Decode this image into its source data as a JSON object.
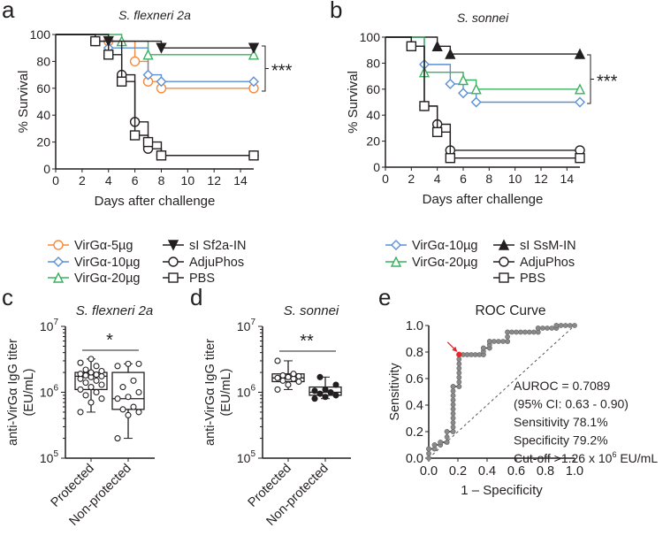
{
  "colors": {
    "orange": "#f58b3c",
    "blue": "#5b8fd6",
    "green": "#3bb060",
    "black": "#231f20",
    "red": "#e8262b",
    "gray": "#888888"
  },
  "chart_data": [
    {
      "panel": "a",
      "type": "line",
      "title": "S. flexneri 2a",
      "xlabel": "Days after challenge",
      "ylabel": "% Survival",
      "xlim": [
        0,
        15
      ],
      "ylim": [
        0,
        100
      ],
      "xticks": [
        "0",
        "2",
        "4",
        "6",
        "8",
        "10",
        "12",
        "14"
      ],
      "yticks": [
        "0",
        "20",
        "40",
        "60",
        "80",
        "100"
      ],
      "significance": "***",
      "series": [
        {
          "name": "VirGα-5µg",
          "color": "orange",
          "marker": "circle-open",
          "points": [
            [
              0,
              100
            ],
            [
              4,
              95
            ],
            [
              6,
              80
            ],
            [
              7,
              65
            ],
            [
              8,
              60
            ],
            [
              15,
              60
            ]
          ]
        },
        {
          "name": "VirGα-10µg",
          "color": "blue",
          "marker": "diamond-open",
          "points": [
            [
              0,
              100
            ],
            [
              4,
              90
            ],
            [
              7,
              70
            ],
            [
              8,
              65
            ],
            [
              15,
              65
            ]
          ]
        },
        {
          "name": "VirGα-20µg",
          "color": "green",
          "marker": "triangle-open",
          "points": [
            [
              0,
              100
            ],
            [
              5,
              95
            ],
            [
              7,
              85
            ],
            [
              15,
              85
            ]
          ]
        },
        {
          "name": "sI Sf2a-IN",
          "color": "black",
          "marker": "triangle-down-filled",
          "points": [
            [
              0,
              100
            ],
            [
              4,
              95
            ],
            [
              8,
              90
            ],
            [
              15,
              90
            ]
          ]
        },
        {
          "name": "AdjuPhos",
          "color": "black",
          "marker": "circle-open",
          "points": [
            [
              0,
              100
            ],
            [
              3,
              95
            ],
            [
              5,
              70
            ],
            [
              6,
              35
            ],
            [
              7,
              15
            ],
            [
              8,
              10
            ],
            [
              15,
              10
            ]
          ]
        },
        {
          "name": "PBS",
          "color": "black",
          "marker": "square-open",
          "points": [
            [
              0,
              100
            ],
            [
              3,
              95
            ],
            [
              4,
              85
            ],
            [
              5,
              65
            ],
            [
              6,
              25
            ],
            [
              7,
              20
            ],
            [
              8,
              10
            ],
            [
              15,
              10
            ]
          ]
        }
      ]
    },
    {
      "panel": "b",
      "type": "line",
      "title": "S. sonnei",
      "xlabel": "Days after challenge",
      "ylabel": "% Survival",
      "xlim": [
        0,
        15
      ],
      "ylim": [
        0,
        100
      ],
      "xticks": [
        "0",
        "2",
        "4",
        "6",
        "8",
        "10",
        "12",
        "14"
      ],
      "yticks": [
        "0",
        "20",
        "40",
        "60",
        "80",
        "100"
      ],
      "significance": "***",
      "series": [
        {
          "name": "VirGα-10µg",
          "color": "blue",
          "marker": "diamond-open",
          "points": [
            [
              0,
              100
            ],
            [
              3,
              79
            ],
            [
              5,
              64
            ],
            [
              6,
              57
            ],
            [
              7,
              50
            ],
            [
              15,
              50
            ]
          ]
        },
        {
          "name": "sI SsM-IN",
          "color": "black",
          "marker": "triangle-filled",
          "points": [
            [
              0,
              100
            ],
            [
              4,
              93
            ],
            [
              5,
              87
            ],
            [
              15,
              87
            ]
          ]
        },
        {
          "name": "VirGα-20µg",
          "color": "green",
          "marker": "triangle-open",
          "points": [
            [
              0,
              100
            ],
            [
              3,
              73
            ],
            [
              6,
              67
            ],
            [
              7,
              60
            ],
            [
              15,
              60
            ]
          ]
        },
        {
          "name": "AdjuPhos",
          "color": "black",
          "marker": "circle-open",
          "points": [
            [
              0,
              100
            ],
            [
              2,
              93
            ],
            [
              3,
              47
            ],
            [
              4,
              33
            ],
            [
              5,
              13
            ],
            [
              15,
              13
            ]
          ]
        },
        {
          "name": "PBS",
          "color": "black",
          "marker": "square-open",
          "points": [
            [
              0,
              100
            ],
            [
              2,
              93
            ],
            [
              3,
              47
            ],
            [
              4,
              27
            ],
            [
              5,
              7
            ],
            [
              15,
              7
            ]
          ]
        }
      ]
    },
    {
      "panel": "c",
      "type": "box",
      "title": "S. flexneri 2a",
      "ylabel": "anti-VirGα IgG titer",
      "ylabel2": "(EU/mL)",
      "yscale": "log",
      "ylim": [
        100000,
        10000000
      ],
      "yticks": [
        {
          "base": "10",
          "exp": "5"
        },
        {
          "base": "10",
          "exp": "6"
        },
        {
          "base": "10",
          "exp": "7"
        }
      ],
      "significance": "*",
      "groups": [
        {
          "name": "Protected",
          "fill": "open",
          "min": 500000,
          "q1": 1100000,
          "median": 1750000,
          "q3": 2000000,
          "max": 3200000,
          "points": [
            500000,
            700000,
            800000,
            900000,
            1000000,
            1100000,
            1200000,
            1300000,
            1400000,
            1500000,
            1600000,
            1700000,
            1750000,
            1800000,
            1850000,
            1900000,
            2000000,
            2100000,
            2200000,
            2500000,
            2800000,
            3200000
          ]
        },
        {
          "name": "Non-protected",
          "fill": "open",
          "min": 200000,
          "q1": 550000,
          "median": 800000,
          "q3": 2000000,
          "max": 2700000,
          "points": [
            200000,
            450000,
            500000,
            550000,
            600000,
            800000,
            850000,
            1000000,
            1200000,
            1500000,
            2500000,
            2700000,
            2700000
          ]
        }
      ]
    },
    {
      "panel": "d",
      "type": "box",
      "title": "S. sonnei",
      "ylabel": "anti-VirGα IgG titer",
      "ylabel2": "(EU/mL)",
      "yscale": "log",
      "ylim": [
        100000,
        10000000
      ],
      "yticks": [
        {
          "base": "10",
          "exp": "5"
        },
        {
          "base": "10",
          "exp": "6"
        },
        {
          "base": "10",
          "exp": "7"
        }
      ],
      "significance": "**",
      "groups": [
        {
          "name": "Protected",
          "fill": "open",
          "min": 1100000,
          "q1": 1450000,
          "median": 1650000,
          "q3": 1900000,
          "max": 3000000,
          "points": [
            1100000,
            1300000,
            1450000,
            1500000,
            1600000,
            1650000,
            1700000,
            1750000,
            1800000,
            1900000,
            3000000
          ]
        },
        {
          "name": "Non-protected",
          "fill": "filled",
          "min": 800000,
          "q1": 900000,
          "median": 1000000,
          "q3": 1200000,
          "max": 1700000,
          "points": [
            800000,
            850000,
            900000,
            950000,
            1000000,
            1050000,
            1100000,
            1300000,
            1700000
          ]
        }
      ]
    },
    {
      "panel": "e",
      "type": "line",
      "title": "ROC Curve",
      "xlabel": "1 – Specificity",
      "ylabel": "Sensitivity",
      "xlim": [
        0,
        1
      ],
      "ylim": [
        0,
        1
      ],
      "xticks": [
        "0.0",
        "0.2",
        "0.4",
        "0.6",
        "0.8",
        "1.0"
      ],
      "yticks": [
        "0.0",
        "0.2",
        "0.4",
        "0.6",
        "0.8",
        "1.0"
      ],
      "points": [
        [
          0,
          0
        ],
        [
          0,
          0.07
        ],
        [
          0.04,
          0.07
        ],
        [
          0.04,
          0.1
        ],
        [
          0.08,
          0.1
        ],
        [
          0.08,
          0.12
        ],
        [
          0.125,
          0.12
        ],
        [
          0.125,
          0.2
        ],
        [
          0.167,
          0.2
        ],
        [
          0.167,
          0.54
        ],
        [
          0.208,
          0.54
        ],
        [
          0.208,
          0.78
        ],
        [
          0.375,
          0.78
        ],
        [
          0.375,
          0.83
        ],
        [
          0.417,
          0.83
        ],
        [
          0.417,
          0.88
        ],
        [
          0.54,
          0.88
        ],
        [
          0.54,
          0.95
        ],
        [
          0.75,
          0.95
        ],
        [
          0.75,
          0.98
        ],
        [
          0.875,
          0.98
        ],
        [
          0.875,
          1
        ],
        [
          1,
          1
        ]
      ],
      "cutoff_point": [
        0.208,
        0.781
      ],
      "annotations": [
        "AUROC = 0.7089",
        "(95% CI: 0.63 - 0.90)",
        "Sensitivity 78.1%",
        "Specificity 79.2%"
      ],
      "cutoff_text": {
        "pre": "Cut-off >1.26 x 10",
        "exp": "6",
        "post": " EU/mL"
      }
    }
  ],
  "panel_labels": [
    "a",
    "b",
    "c",
    "d",
    "e"
  ]
}
